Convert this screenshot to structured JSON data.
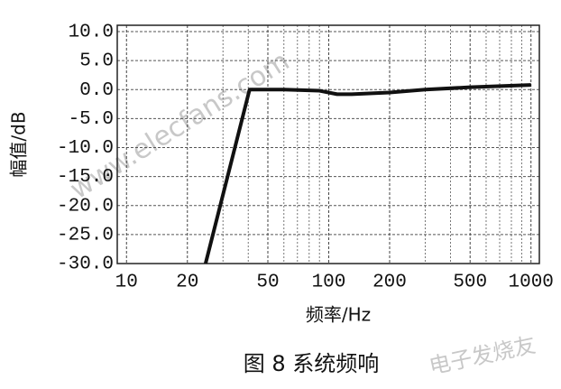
{
  "chart_data": {
    "type": "line",
    "ylabel": "幅值/dB",
    "xlabel": "频率/Hz",
    "caption": "图 8  系统频响",
    "watermarks": [
      "www.elecfans.com",
      "电子发烧友"
    ],
    "xscale": "log",
    "xlim": [
      9,
      1100
    ],
    "ylim": [
      -30,
      10
    ],
    "xticks": [
      10,
      20,
      50,
      100,
      200,
      500,
      1000
    ],
    "x_minor_ticks": [
      30,
      40,
      60,
      70,
      80,
      90,
      300,
      400,
      600,
      700,
      800,
      900
    ],
    "yticks": [
      {
        "value": 10,
        "label": "10.0"
      },
      {
        "value": 5,
        "label": "5.0"
      },
      {
        "value": 0,
        "label": "0.0"
      },
      {
        "value": -5,
        "label": "-5.0"
      },
      {
        "value": -10,
        "label": "-10.0"
      },
      {
        "value": -15,
        "label": "-15.0"
      },
      {
        "value": -20,
        "label": "-20.0"
      },
      {
        "value": -25,
        "label": "-25.0"
      },
      {
        "value": -30,
        "label": "-30.0"
      }
    ],
    "grid": true,
    "series": [
      {
        "name": "幅值",
        "color": "#111111",
        "x": [
          24.6,
          40.6,
          60,
          90,
          110,
          130,
          200,
          300,
          500,
          1000
        ],
        "values": [
          -30,
          0,
          0,
          -0.2,
          -0.8,
          -0.8,
          -0.5,
          0,
          0.4,
          0.8
        ]
      }
    ]
  }
}
